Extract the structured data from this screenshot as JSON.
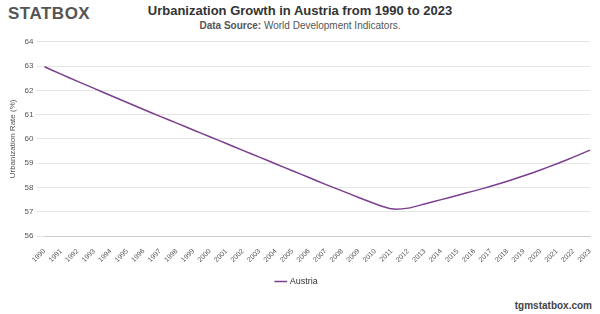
{
  "chart_data": {
    "type": "line",
    "title": "Urbanization Growth in Austria from 1990 to 2023",
    "subtitle": "Data Source: World Development Indicators.",
    "annotations": [
      "STATBOX",
      "tgmstatbox.com"
    ],
    "y_label": "Urbanization Rate (%)",
    "categories": [
      "1990",
      "1991",
      "1992",
      "1993",
      "1994",
      "1995",
      "1996",
      "1997",
      "1998",
      "1999",
      "2000",
      "2001",
      "2002",
      "2003",
      "2004",
      "2005",
      "2006",
      "2007",
      "2008",
      "2009",
      "2010",
      "2011",
      "2012",
      "2013",
      "2014",
      "2015",
      "2016",
      "2017",
      "2018",
      "2019",
      "2020",
      "2021",
      "2022",
      "2023"
    ],
    "series": [
      {
        "name": "Austria",
        "color": "#7b3f8f",
        "values": [
          62.97,
          62.67,
          62.37,
          62.08,
          61.79,
          61.5,
          61.21,
          60.93,
          60.65,
          60.37,
          60.09,
          59.81,
          59.53,
          59.25,
          58.97,
          58.69,
          58.41,
          58.13,
          57.86,
          57.59,
          57.33,
          57.12,
          57.15,
          57.32,
          57.5,
          57.68,
          57.86,
          58.05,
          58.26,
          58.48,
          58.72,
          58.98,
          59.25,
          59.54
        ]
      }
    ],
    "ylim": [
      56,
      64
    ],
    "yticks": [
      56,
      57,
      58,
      59,
      60,
      61,
      62,
      63,
      64
    ],
    "grid": true,
    "legend": "bottom"
  }
}
